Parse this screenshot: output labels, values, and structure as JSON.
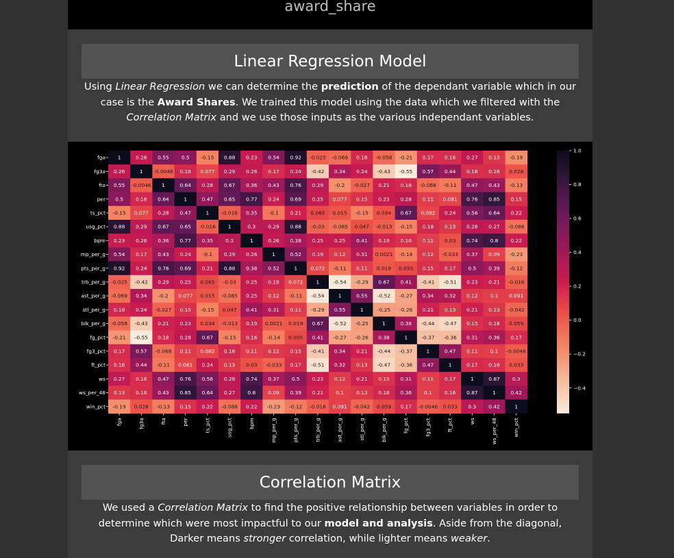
{
  "top_banner": {
    "label": "award_share"
  },
  "linear_regression": {
    "title": "Linear Regression Model",
    "paragraph": [
      {
        "t": "Using ",
        "s": "n"
      },
      {
        "t": "Linear Regression",
        "s": "i"
      },
      {
        "t": " we can determine the ",
        "s": "n"
      },
      {
        "t": "prediction",
        "s": "b"
      },
      {
        "t": " of the dependant variable which in our case is the ",
        "s": "n"
      },
      {
        "t": "Award Shares",
        "s": "b"
      },
      {
        "t": ". We trained this model using the data which we filtered with the ",
        "s": "n"
      },
      {
        "t": "Correlation Matrix",
        "s": "i"
      },
      {
        "t": " and we use those inputs as the various independant variables.",
        "s": "n"
      }
    ]
  },
  "correlation_matrix": {
    "title": "Correlation Matrix",
    "paragraph": [
      {
        "t": "We used a ",
        "s": "n"
      },
      {
        "t": "Correlation Matrix",
        "s": "i"
      },
      {
        "t": " to find the positive relationship between variables in order to determine which were most impactful to our ",
        "s": "n"
      },
      {
        "t": "model and analysis",
        "s": "b"
      },
      {
        "t": ". Aside from the diagonal, Darker means ",
        "s": "n"
      },
      {
        "t": "stronger",
        "s": "i"
      },
      {
        "t": " correlation, while lighter means ",
        "s": "n"
      },
      {
        "t": "weaker",
        "s": "i"
      },
      {
        "t": ".",
        "s": "n"
      }
    ]
  },
  "chart_data": {
    "type": "heatmap",
    "labels": [
      "fga",
      "fg3a",
      "fta",
      "per",
      "ts_pct",
      "usg_pct",
      "bpm",
      "mp_per_g",
      "pts_per_g",
      "trb_per_g",
      "ast_per_g",
      "stl_per_g",
      "blk_per_g",
      "fg_pct",
      "fg3_pct",
      "ft_pct",
      "ws",
      "ws_per_48",
      "win_pct"
    ],
    "values": [
      [
        "1",
        "0.26",
        "0.55",
        "0.5",
        "-0.15",
        "0.88",
        "0.23",
        "0.54",
        "0.92",
        "-0.025",
        "-0.069",
        "0.18",
        "-0.058",
        "-0.21",
        "0.17",
        "0.16",
        "0.27",
        "0.13",
        "-0.19"
      ],
      [
        "0.26",
        "1",
        "-0.0046",
        "0.18",
        "0.077",
        "0.29",
        "0.26",
        "0.17",
        "0.24",
        "-0.42",
        "0.34",
        "0.24",
        "-0.43",
        "-0.55",
        "0.57",
        "0.44",
        "0.16",
        "0.16",
        "0.028"
      ],
      [
        "0.55",
        "-0.0046",
        "1",
        "0.64",
        "0.28",
        "0.67",
        "0.36",
        "0.43",
        "0.76",
        "0.29",
        "-0.2",
        "-0.027",
        "0.21",
        "0.18",
        "-0.068",
        "-0.11",
        "0.47",
        "0.43",
        "-0.13"
      ],
      [
        "0.5",
        "0.18",
        "0.64",
        "1",
        "0.47",
        "0.65",
        "0.77",
        "0.24",
        "0.69",
        "0.25",
        "0.077",
        "0.15",
        "0.23",
        "0.28",
        "0.11",
        "0.081",
        "0.76",
        "0.85",
        "0.15"
      ],
      [
        "-0.15",
        "0.077",
        "0.28",
        "0.47",
        "1",
        "-0.016",
        "0.35",
        "-0.1",
        "0.21",
        "0.065",
        "0.015",
        "-0.15",
        "0.034",
        "0.67",
        "0.082",
        "0.24",
        "0.56",
        "0.64",
        "0.22"
      ],
      [
        "0.88",
        "0.29",
        "0.67",
        "0.65",
        "-0.016",
        "1",
        "0.3",
        "0.29",
        "0.88",
        "-0.03",
        "-0.085",
        "0.047",
        "-0.013",
        "-0.15",
        "0.18",
        "0.13",
        "0.28",
        "0.27",
        "-0.088"
      ],
      [
        "0.23",
        "0.26",
        "0.36",
        "0.77",
        "0.35",
        "0.3",
        "1",
        "0.26",
        "0.38",
        "0.25",
        "0.25",
        "0.41",
        "0.19",
        "0.16",
        "0.11",
        "0.03",
        "0.74",
        "0.8",
        "0.22"
      ],
      [
        "0.54",
        "0.17",
        "0.43",
        "0.24",
        "-0.1",
        "0.29",
        "0.26",
        "1",
        "0.52",
        "0.19",
        "0.12",
        "0.31",
        "0.0021",
        "-0.14",
        "0.12",
        "-0.033",
        "0.37",
        "0.09",
        "-0.23"
      ],
      [
        "0.92",
        "0.24",
        "0.76",
        "0.69",
        "0.21",
        "0.88",
        "0.38",
        "0.52",
        "1",
        "0.072",
        "-0.11",
        "0.11",
        "0.019",
        "0.055",
        "0.15",
        "0.17",
        "0.5",
        "0.39",
        "-0.12"
      ],
      [
        "-0.025",
        "-0.42",
        "0.29",
        "0.25",
        "0.065",
        "-0.03",
        "0.25",
        "0.19",
        "0.072",
        "1",
        "-0.54",
        "-0.29",
        "0.67",
        "0.41",
        "-0.41",
        "-0.51",
        "0.23",
        "0.21",
        "-0.016"
      ],
      [
        "-0.069",
        "0.34",
        "-0.2",
        "0.077",
        "0.015",
        "-0.085",
        "0.25",
        "0.12",
        "-0.11",
        "-0.54",
        "1",
        "0.55",
        "-0.52",
        "-0.27",
        "0.34",
        "0.32",
        "0.12",
        "0.1",
        "0.091"
      ],
      [
        "0.18",
        "0.24",
        "-0.027",
        "0.15",
        "-0.15",
        "0.047",
        "0.41",
        "0.31",
        "0.11",
        "-0.29",
        "0.55",
        "1",
        "-0.25",
        "-0.26",
        "0.21",
        "0.13",
        "0.21",
        "0.13",
        "-0.042"
      ],
      [
        "-0.058",
        "-0.43",
        "0.21",
        "0.23",
        "0.034",
        "-0.013",
        "0.19",
        "0.0021",
        "0.019",
        "0.67",
        "-0.52",
        "-0.25",
        "1",
        "0.38",
        "-0.44",
        "-0.47",
        "0.15",
        "0.18",
        "0.059"
      ],
      [
        "-0.21",
        "-0.55",
        "0.18",
        "0.28",
        "0.67",
        "-0.15",
        "0.16",
        "-0.14",
        "0.055",
        "0.41",
        "-0.27",
        "-0.26",
        "0.38",
        "1",
        "-0.37",
        "-0.36",
        "0.31",
        "0.36",
        "0.17"
      ],
      [
        "0.17",
        "0.57",
        "-0.068",
        "0.11",
        "0.082",
        "0.18",
        "0.11",
        "0.12",
        "0.15",
        "-0.41",
        "0.34",
        "0.21",
        "-0.44",
        "-0.37",
        "1",
        "0.47",
        "0.11",
        "0.1",
        "-0.0046"
      ],
      [
        "0.16",
        "0.44",
        "-0.11",
        "0.081",
        "0.24",
        "0.13",
        "0.03",
        "-0.033",
        "0.17",
        "-0.51",
        "0.32",
        "0.13",
        "-0.47",
        "-0.36",
        "0.47",
        "1",
        "0.17",
        "0.16",
        "0.033"
      ],
      [
        "0.27",
        "0.16",
        "0.47",
        "0.76",
        "0.56",
        "0.28",
        "0.74",
        "0.37",
        "0.5",
        "0.23",
        "0.12",
        "0.21",
        "0.15",
        "0.31",
        "0.11",
        "0.17",
        "1",
        "0.87",
        "0.3"
      ],
      [
        "0.13",
        "0.16",
        "0.43",
        "0.85",
        "0.64",
        "0.27",
        "0.8",
        "0.09",
        "0.39",
        "0.21",
        "0.1",
        "0.13",
        "0.18",
        "0.36",
        "0.1",
        "0.16",
        "0.87",
        "1",
        "0.42"
      ],
      [
        "-0.19",
        "0.028",
        "-0.13",
        "0.15",
        "0.22",
        "-0.088",
        "0.22",
        "-0.23",
        "-0.12",
        "-0.016",
        "0.091",
        "-0.042",
        "0.059",
        "0.17",
        "-0.0046",
        "0.033",
        "0.3",
        "0.42",
        "1"
      ]
    ],
    "colorbar": {
      "min": -0.55,
      "max": 1.0,
      "ticks": [
        "1.0",
        "0.8",
        "0.6",
        "0.4",
        "0.2",
        "0.0",
        "−0.2",
        "−0.4"
      ],
      "tick_values": [
        1.0,
        0.8,
        0.6,
        0.4,
        0.2,
        0.0,
        -0.2,
        -0.4
      ]
    },
    "colormap": "rocket_r"
  }
}
